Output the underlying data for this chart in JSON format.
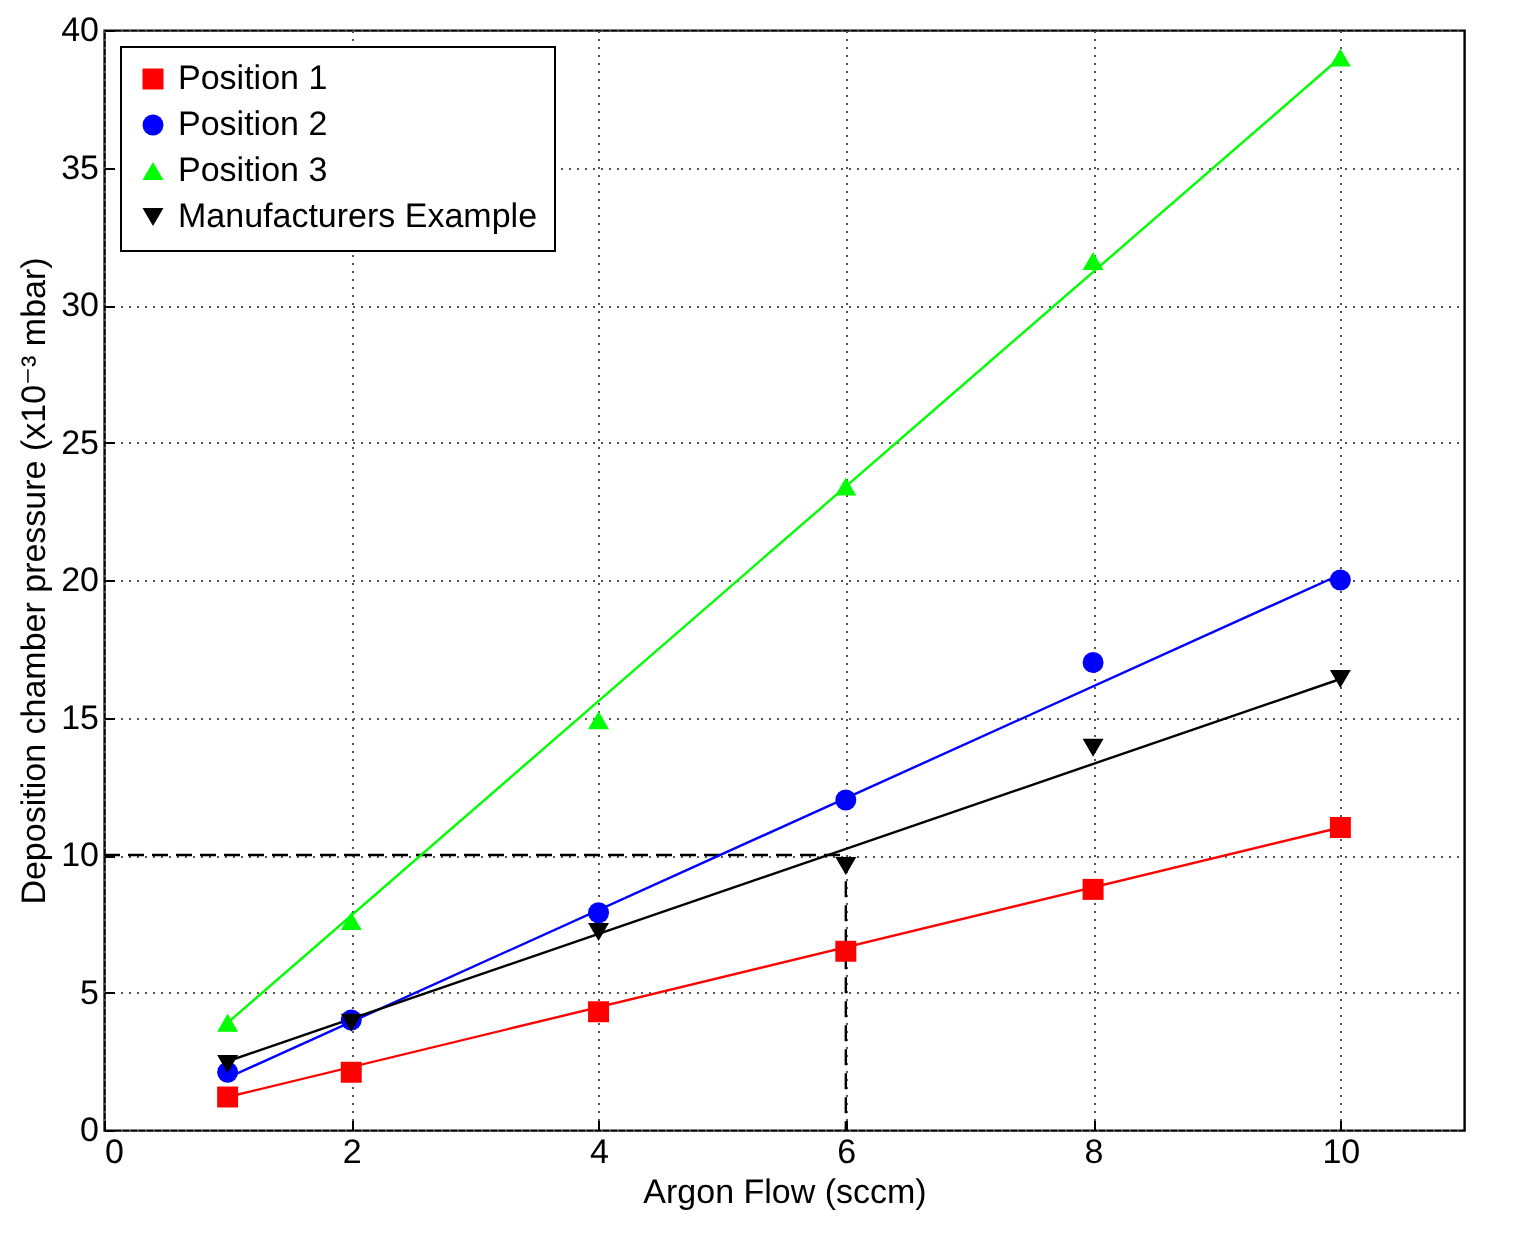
{
  "chart_data": {
    "type": "scatter",
    "xlabel": "Argon Flow (sccm)",
    "ylabel": "Deposition chamber pressure (x10⁻³ mbar)",
    "xlim": [
      0,
      11
    ],
    "ylim": [
      0,
      40
    ],
    "xticks": [
      0,
      2,
      4,
      6,
      8,
      10
    ],
    "yticks": [
      0,
      5,
      10,
      15,
      20,
      25,
      30,
      35,
      40
    ],
    "grid": true,
    "legend": "top left",
    "series": [
      {
        "type": "line",
        "color": "#000000",
        "line_style": "dashed",
        "marker": "none",
        "x": [
          0,
          6,
          6
        ],
        "values": [
          10,
          10,
          0
        ]
      },
      {
        "type": "line",
        "color": "#ff0000",
        "marker": "none",
        "x": [
          1,
          10
        ],
        "values": [
          1.2,
          11
        ]
      },
      {
        "type": "line",
        "color": "#0000ff",
        "marker": "none",
        "x": [
          1,
          10
        ],
        "values": [
          1.9,
          20.2
        ]
      },
      {
        "type": "line",
        "color": "#00ff00",
        "marker": "none",
        "x": [
          1,
          10
        ],
        "values": [
          3.9,
          39
        ]
      },
      {
        "type": "line",
        "color": "#000000",
        "marker": "none",
        "x": [
          1,
          10
        ],
        "values": [
          2.5,
          16.4
        ]
      },
      {
        "name": "Position 1",
        "type": "scatter",
        "color": "#ff0000",
        "marker": "square",
        "x": [
          1,
          2,
          4,
          6,
          8,
          10
        ],
        "values": [
          1.2,
          2.1,
          4.3,
          6.5,
          8.75,
          11
        ]
      },
      {
        "name": "Position 2",
        "type": "scatter",
        "color": "#0000ff",
        "marker": "circle",
        "x": [
          1,
          2,
          4,
          6,
          8,
          10
        ],
        "values": [
          2.1,
          4.0,
          7.9,
          12.0,
          17.0,
          20.0
        ]
      },
      {
        "name": "Position 3",
        "type": "scatter",
        "color": "#00ff00",
        "marker": "triangle",
        "x": [
          1,
          2,
          4,
          6,
          8,
          10
        ],
        "values": [
          3.9,
          7.6,
          14.9,
          23.4,
          31.6,
          39
        ]
      },
      {
        "name": "Manufacturers Example",
        "type": "scatter",
        "color": "#000000",
        "marker": "triangle-down",
        "x": [
          1,
          2,
          4,
          6,
          8,
          10
        ],
        "values": [
          2.4,
          3.9,
          7.2,
          9.6,
          13.9,
          16.4
        ]
      }
    ]
  }
}
